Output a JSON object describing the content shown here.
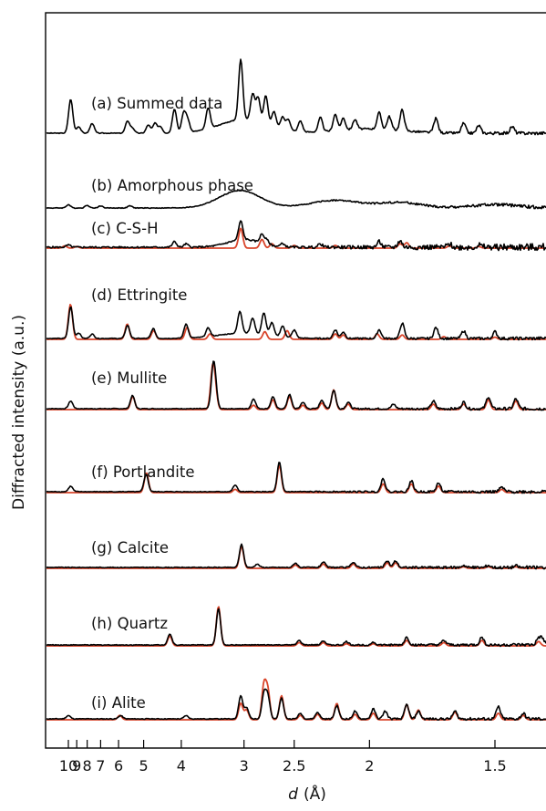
{
  "chart_data": {
    "type": "line",
    "xlabel_var": "d",
    "xlabel_unit": "(Å)",
    "ylabel": "Diffracted intensity (a.u.)",
    "x_axis": {
      "scale": "reciprocal",
      "lim": [
        10.5,
        1.3
      ]
    },
    "x_ticks": [
      {
        "label": "10",
        "value": 10
      },
      {
        "label": "9",
        "value": 9
      },
      {
        "label": "8",
        "value": 8
      },
      {
        "label": "7",
        "value": 7
      },
      {
        "label": "6",
        "value": 6
      },
      {
        "label": "5",
        "value": 5
      },
      {
        "label": "4",
        "value": 4
      },
      {
        "label": "3",
        "value": 3
      },
      {
        "label": "2.5",
        "value": 2.5
      },
      {
        "label": "2",
        "value": 2
      },
      {
        "label": "1.5",
        "value": 1.5
      }
    ],
    "colors": {
      "observed": "#000000",
      "calculated": "#d9452b"
    },
    "grid": false,
    "panels": [
      {
        "label": "(a) Summed data",
        "observed_peaks": [
          [
            9.7,
            62
          ],
          [
            8.8,
            12
          ],
          [
            7.6,
            18
          ],
          [
            5.6,
            22
          ],
          [
            5.4,
            9
          ],
          [
            4.85,
            15
          ],
          [
            4.65,
            18
          ],
          [
            4.5,
            12
          ],
          [
            4.15,
            44
          ],
          [
            3.95,
            35
          ],
          [
            3.87,
            22
          ],
          [
            3.5,
            38
          ],
          [
            3.04,
            110
          ],
          [
            2.9,
            48
          ],
          [
            2.84,
            44
          ],
          [
            2.76,
            52
          ],
          [
            2.68,
            28
          ],
          [
            2.6,
            22
          ],
          [
            2.55,
            20
          ],
          [
            2.45,
            20
          ],
          [
            2.3,
            26
          ],
          [
            2.2,
            30
          ],
          [
            2.15,
            22
          ],
          [
            2.08,
            18
          ],
          [
            1.95,
            30
          ],
          [
            1.9,
            24
          ],
          [
            1.84,
            38
          ],
          [
            1.7,
            26
          ],
          [
            1.6,
            18
          ],
          [
            1.55,
            14
          ],
          [
            1.45,
            12
          ],
          [
            1.35,
            10
          ]
        ],
        "observed_hump": [
          [
            3.0,
            25,
            0.3
          ],
          [
            2.0,
            8,
            0.4
          ]
        ],
        "calculated_peaks": []
      },
      {
        "label": "(b) Amorphous phase",
        "observed_peaks": [
          [
            10.0,
            6
          ],
          [
            8.0,
            5
          ],
          [
            7.0,
            4
          ],
          [
            5.5,
            4
          ]
        ],
        "observed_hump": [
          [
            3.05,
            32,
            0.25
          ],
          [
            2.2,
            14,
            0.3
          ],
          [
            1.85,
            10,
            0.25
          ],
          [
            1.5,
            6,
            0.3
          ]
        ],
        "calculated_peaks": []
      },
      {
        "label": "(c) C-S-H",
        "observed_peaks": [
          [
            10.0,
            4
          ],
          [
            4.15,
            10
          ],
          [
            3.9,
            6
          ],
          [
            3.04,
            34
          ],
          [
            2.8,
            16
          ],
          [
            2.75,
            8
          ],
          [
            2.6,
            6
          ],
          [
            2.3,
            6
          ],
          [
            1.95,
            10
          ],
          [
            1.85,
            12
          ],
          [
            1.65,
            6
          ],
          [
            1.55,
            4
          ]
        ],
        "observed_hump": [
          [
            3.0,
            14,
            0.15
          ]
        ],
        "calculated_peaks": [
          [
            10.5,
            4
          ],
          [
            9.0,
            3
          ],
          [
            3.04,
            36
          ],
          [
            2.8,
            16
          ],
          [
            2.7,
            8
          ],
          [
            2.5,
            5
          ],
          [
            2.2,
            5
          ],
          [
            1.85,
            8
          ],
          [
            1.82,
            10
          ],
          [
            1.65,
            4
          ],
          [
            1.55,
            3
          ]
        ]
      },
      {
        "label": "(d) Ettringite",
        "observed_peaks": [
          [
            9.7,
            58
          ],
          [
            8.8,
            10
          ],
          [
            7.6,
            8
          ],
          [
            5.6,
            24
          ],
          [
            4.7,
            18
          ],
          [
            3.9,
            26
          ],
          [
            3.5,
            16
          ],
          [
            3.05,
            40
          ],
          [
            2.9,
            28
          ],
          [
            2.78,
            40
          ],
          [
            2.7,
            24
          ],
          [
            2.6,
            20
          ],
          [
            2.5,
            14
          ],
          [
            2.2,
            16
          ],
          [
            2.15,
            12
          ],
          [
            1.95,
            16
          ],
          [
            1.84,
            28
          ],
          [
            1.7,
            20
          ],
          [
            1.6,
            14
          ],
          [
            1.5,
            12
          ],
          [
            1.35,
            10
          ]
        ],
        "observed_hump": [
          [
            3.0,
            10,
            0.3
          ]
        ],
        "calculated_peaks": [
          [
            9.73,
            64
          ],
          [
            5.61,
            28
          ],
          [
            4.69,
            16
          ],
          [
            3.88,
            22
          ],
          [
            3.47,
            10
          ],
          [
            2.77,
            14
          ],
          [
            2.56,
            16
          ],
          [
            2.2,
            10
          ],
          [
            2.15,
            8
          ],
          [
            1.96,
            10
          ],
          [
            1.84,
            8
          ],
          [
            1.67,
            5
          ],
          [
            1.5,
            4
          ]
        ],
        "calculated_hump": []
      },
      {
        "label": "(e) Mullite",
        "observed_peaks": [
          [
            9.7,
            14
          ],
          [
            5.4,
            24
          ],
          [
            3.42,
            66
          ],
          [
            3.39,
            30
          ],
          [
            2.89,
            18
          ],
          [
            2.69,
            22
          ],
          [
            2.54,
            26
          ],
          [
            2.43,
            12
          ],
          [
            2.29,
            16
          ],
          [
            2.21,
            34
          ],
          [
            2.12,
            12
          ],
          [
            1.88,
            8
          ],
          [
            1.71,
            14
          ],
          [
            1.6,
            12
          ],
          [
            1.52,
            22
          ],
          [
            1.44,
            18
          ],
          [
            1.34,
            14
          ],
          [
            1.27,
            10
          ]
        ],
        "observed_hump": [],
        "calculated_peaks": [
          [
            5.39,
            24
          ],
          [
            3.43,
            68
          ],
          [
            3.39,
            32
          ],
          [
            2.89,
            8
          ],
          [
            2.69,
            18
          ],
          [
            2.54,
            24
          ],
          [
            2.43,
            8
          ],
          [
            2.29,
            12
          ],
          [
            2.21,
            36
          ],
          [
            2.12,
            10
          ],
          [
            1.71,
            10
          ],
          [
            1.6,
            10
          ],
          [
            1.52,
            18
          ],
          [
            1.44,
            16
          ],
          [
            1.34,
            12
          ],
          [
            1.27,
            8
          ]
        ]
      },
      {
        "label": "(f) Portlandite",
        "observed_peaks": [
          [
            9.7,
            10
          ],
          [
            4.92,
            32
          ],
          [
            3.11,
            12
          ],
          [
            2.63,
            54
          ],
          [
            1.93,
            24
          ],
          [
            1.8,
            20
          ],
          [
            1.69,
            16
          ],
          [
            1.48,
            8
          ]
        ],
        "observed_hump": [],
        "calculated_peaks": [
          [
            4.91,
            36
          ],
          [
            3.11,
            6
          ],
          [
            2.63,
            50
          ],
          [
            1.93,
            16
          ],
          [
            1.8,
            16
          ],
          [
            1.69,
            12
          ],
          [
            1.48,
            6
          ]
        ]
      },
      {
        "label": "(g) Calcite",
        "observed_peaks": [
          [
            3.03,
            42
          ],
          [
            2.85,
            6
          ],
          [
            2.49,
            8
          ],
          [
            2.28,
            10
          ],
          [
            2.09,
            10
          ],
          [
            1.91,
            12
          ],
          [
            1.87,
            12
          ],
          [
            1.6,
            4
          ],
          [
            1.52,
            4
          ],
          [
            1.44,
            3
          ]
        ],
        "observed_hump": [],
        "calculated_peaks": [
          [
            3.03,
            40
          ],
          [
            2.49,
            6
          ],
          [
            2.28,
            8
          ],
          [
            2.09,
            8
          ],
          [
            1.91,
            10
          ],
          [
            1.87,
            10
          ],
          [
            1.6,
            3
          ],
          [
            1.52,
            3
          ],
          [
            1.44,
            3
          ]
        ]
      },
      {
        "label": "(h) Quartz",
        "observed_peaks": [
          [
            4.26,
            20
          ],
          [
            3.34,
            66
          ],
          [
            2.46,
            8
          ],
          [
            2.28,
            8
          ],
          [
            2.13,
            6
          ],
          [
            1.98,
            5
          ],
          [
            1.82,
            14
          ],
          [
            1.67,
            8
          ],
          [
            1.54,
            14
          ],
          [
            1.38,
            12
          ],
          [
            1.37,
            10
          ]
        ],
        "observed_hump": [],
        "calculated_peaks": [
          [
            4.26,
            18
          ],
          [
            3.34,
            72
          ],
          [
            2.46,
            6
          ],
          [
            2.28,
            6
          ],
          [
            2.13,
            4
          ],
          [
            1.98,
            4
          ],
          [
            1.82,
            10
          ],
          [
            1.67,
            6
          ],
          [
            1.54,
            10
          ],
          [
            1.38,
            8
          ]
        ]
      },
      {
        "label": "(i) Alite",
        "observed_peaks": [
          [
            10.0,
            6
          ],
          [
            5.9,
            6
          ],
          [
            3.9,
            6
          ],
          [
            3.04,
            42
          ],
          [
            2.97,
            20
          ],
          [
            2.78,
            44
          ],
          [
            2.74,
            40
          ],
          [
            2.61,
            38
          ],
          [
            2.45,
            10
          ],
          [
            2.32,
            12
          ],
          [
            2.19,
            24
          ],
          [
            2.08,
            14
          ],
          [
            1.98,
            18
          ],
          [
            1.92,
            14
          ],
          [
            1.82,
            26
          ],
          [
            1.77,
            14
          ],
          [
            1.63,
            14
          ],
          [
            1.49,
            22
          ],
          [
            1.42,
            10
          ],
          [
            1.34,
            12
          ]
        ],
        "observed_hump": [],
        "calculated_peaks": [
          [
            5.94,
            8
          ],
          [
            3.04,
            30
          ],
          [
            2.97,
            18
          ],
          [
            2.78,
            62
          ],
          [
            2.74,
            52
          ],
          [
            2.61,
            44
          ],
          [
            2.45,
            8
          ],
          [
            2.32,
            10
          ],
          [
            2.19,
            30
          ],
          [
            2.08,
            10
          ],
          [
            1.98,
            12
          ],
          [
            1.82,
            28
          ],
          [
            1.77,
            18
          ],
          [
            1.63,
            14
          ],
          [
            1.49,
            12
          ],
          [
            1.42,
            8
          ]
        ]
      }
    ]
  }
}
